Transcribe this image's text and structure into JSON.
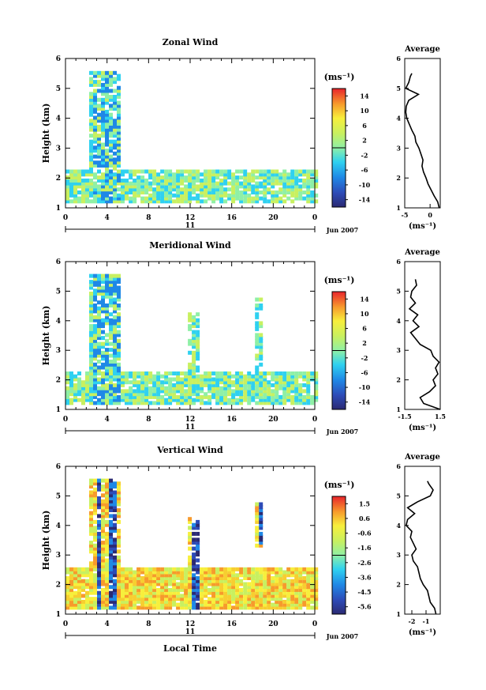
{
  "figure": {
    "date_label": "Jun 2007",
    "day_label": "11",
    "xlabel_bottom": "Local Time",
    "average_title": "Average"
  },
  "chart_data": [
    {
      "type": "heatmap",
      "title": "Zonal Wind",
      "xlabel": "",
      "ylabel": "Height (km)",
      "xlim": [
        0,
        24
      ],
      "ylim": [
        1,
        6
      ],
      "xticks": [
        "0",
        "4",
        "8",
        "12",
        "16",
        "20",
        "0"
      ],
      "yticks": [
        "1",
        "2",
        "3",
        "4",
        "5",
        "6"
      ],
      "colorbar": {
        "unit": "(ms⁻¹)",
        "range": [
          -16,
          16
        ],
        "ticks": [
          "14",
          "10",
          "6",
          "2",
          "-2",
          "-6",
          "-10",
          "-14"
        ]
      },
      "average_profile": {
        "title": "Average",
        "xlabel": "(ms⁻¹)",
        "xlim": [
          -5,
          2
        ],
        "xticks": [
          "-5",
          "0"
        ],
        "height": [
          1.0,
          1.2,
          1.4,
          1.6,
          1.8,
          2.0,
          2.2,
          2.4,
          2.6,
          2.8,
          3.0,
          3.2,
          3.4,
          3.6,
          3.8,
          4.0,
          4.2,
          4.4,
          4.6,
          4.8,
          5.0,
          5.2,
          5.4,
          5.5
        ],
        "values": [
          1.8,
          1.5,
          0.8,
          0.2,
          -0.4,
          -0.8,
          -1.3,
          -1.6,
          -1.4,
          -1.8,
          -2.2,
          -2.8,
          -3.0,
          -3.6,
          -4.1,
          -4.6,
          -4.8,
          -4.7,
          -4.2,
          -2.3,
          -4.8,
          -4.2,
          -3.9,
          -3.6
        ]
      }
    },
    {
      "type": "heatmap",
      "title": "Meridional Wind",
      "xlabel": "",
      "ylabel": "Height (km)",
      "xlim": [
        0,
        24
      ],
      "ylim": [
        1,
        6
      ],
      "xticks": [
        "0",
        "4",
        "8",
        "12",
        "16",
        "20",
        "0"
      ],
      "yticks": [
        "1",
        "2",
        "3",
        "4",
        "5",
        "6"
      ],
      "colorbar": {
        "unit": "(ms⁻¹)",
        "range": [
          -16,
          16
        ],
        "ticks": [
          "14",
          "10",
          "6",
          "2",
          "-2",
          "-6",
          "-10",
          "-14"
        ]
      },
      "average_profile": {
        "title": "Average",
        "xlabel": "(ms⁻¹)",
        "xlim": [
          -1.5,
          1.5
        ],
        "xticks": [
          "-1.5",
          "1.5"
        ],
        "height": [
          1.0,
          1.2,
          1.4,
          1.6,
          1.8,
          2.0,
          2.2,
          2.4,
          2.6,
          2.8,
          3.0,
          3.2,
          3.4,
          3.6,
          3.8,
          4.0,
          4.2,
          4.4,
          4.6,
          4.8,
          5.0,
          5.2,
          5.4
        ],
        "values": [
          1.5,
          0.1,
          -0.2,
          0.6,
          1.1,
          0.9,
          1.3,
          1.1,
          1.4,
          0.9,
          0.7,
          -0.2,
          -0.6,
          -1.0,
          -0.3,
          -0.8,
          -0.4,
          -1.1,
          -0.6,
          -1.0,
          -0.9,
          -0.5,
          -0.6
        ]
      }
    },
    {
      "type": "heatmap",
      "title": "Vertical Wind",
      "xlabel": "Local Time",
      "ylabel": "Height (km)",
      "xlim": [
        0,
        24
      ],
      "ylim": [
        1,
        6
      ],
      "xticks": [
        "0",
        "4",
        "8",
        "12",
        "16",
        "20",
        "0"
      ],
      "yticks": [
        "1",
        "2",
        "3",
        "4",
        "5",
        "6"
      ],
      "colorbar": {
        "unit": "(ms⁻¹)",
        "range": [
          -6.4,
          2.4
        ],
        "ticks": [
          "1.5",
          "0.6",
          "-0.6",
          "-1.6",
          "-2.6",
          "-3.6",
          "-4.5",
          "-5.6"
        ]
      },
      "average_profile": {
        "title": "Average",
        "xlabel": "(ms⁻¹)",
        "xlim": [
          -2.5,
          0.0
        ],
        "xticks": [
          "-2",
          "-1"
        ],
        "height": [
          1.0,
          1.2,
          1.4,
          1.6,
          1.8,
          2.0,
          2.2,
          2.4,
          2.6,
          2.8,
          3.0,
          3.2,
          3.4,
          3.6,
          3.8,
          4.0,
          4.2,
          4.4,
          4.6,
          4.8,
          5.0,
          5.2,
          5.4,
          5.5
        ],
        "values": [
          -0.3,
          -0.4,
          -0.7,
          -0.8,
          -0.9,
          -1.2,
          -1.4,
          -1.5,
          -1.6,
          -1.9,
          -2.0,
          -1.7,
          -1.9,
          -2.1,
          -2.0,
          -2.4,
          -2.3,
          -1.8,
          -2.3,
          -1.6,
          -0.7,
          -0.5,
          -0.8,
          -0.9
        ]
      }
    }
  ]
}
